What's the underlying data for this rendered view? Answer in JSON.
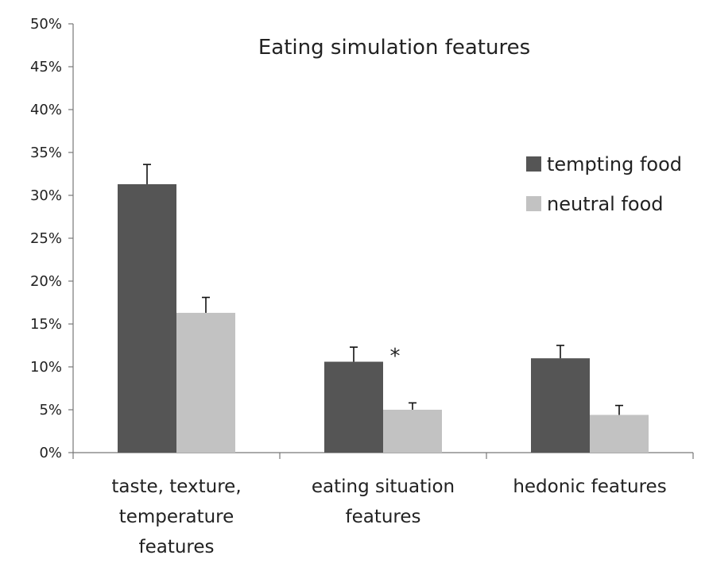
{
  "chart_data": {
    "type": "bar",
    "title": "Eating simulation features",
    "categories": [
      [
        "taste, texture,",
        "temperature",
        "features"
      ],
      [
        "eating situation",
        "features"
      ],
      [
        "hedonic features"
      ]
    ],
    "series": [
      {
        "name": "tempting food",
        "values": [
          31.3,
          10.6,
          11.0
        ],
        "errors": [
          2.3,
          1.7,
          1.5
        ],
        "color": "#555555"
      },
      {
        "name": "neutral food",
        "values": [
          16.3,
          5.0,
          4.4
        ],
        "errors": [
          1.8,
          0.8,
          1.1
        ],
        "color": "#c2c2c2"
      }
    ],
    "ylim": [
      0,
      50
    ],
    "yticks": [
      "0%",
      "5%",
      "10%",
      "15%",
      "20%",
      "25%",
      "30%",
      "35%",
      "40%",
      "45%",
      "50%"
    ],
    "yunit": "%",
    "grid": false,
    "legend_position": "right",
    "annotations": [
      {
        "text": "*",
        "category_index": 1
      }
    ],
    "xlabel": "",
    "ylabel": ""
  }
}
